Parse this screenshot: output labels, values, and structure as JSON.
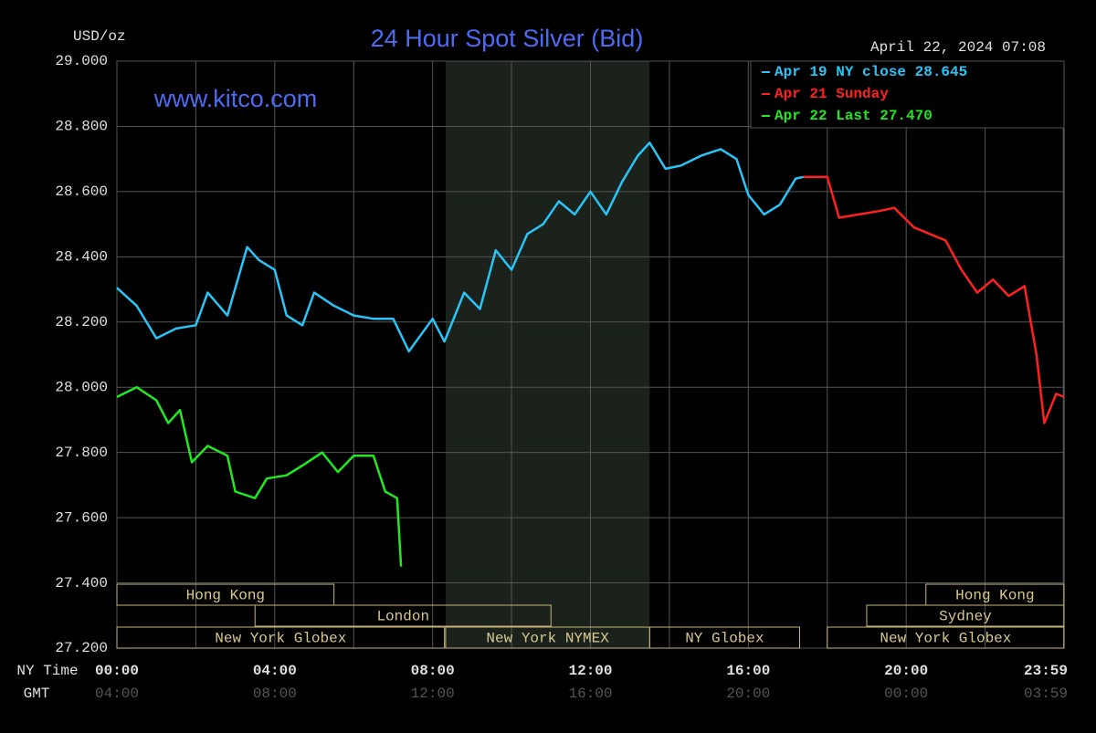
{
  "chart_data": {
    "type": "line",
    "title": "24 Hour Spot Silver (Bid)",
    "y_unit": "USD/oz",
    "timestamp": "April 22, 2024 07:08",
    "watermark": "www.kitco.com",
    "x_axis_labels": [
      "NY Time",
      "GMT"
    ],
    "xlim": [
      0,
      24
    ],
    "xticks": [
      {
        "value": 0,
        "label": "00:00"
      },
      {
        "value": 4,
        "label": "04:00"
      },
      {
        "value": 8,
        "label": "08:00"
      },
      {
        "value": 12,
        "label": "12:00"
      },
      {
        "value": 16,
        "label": "16:00"
      },
      {
        "value": 20,
        "label": "20:00"
      },
      {
        "value": 23.983,
        "label": "23:59"
      }
    ],
    "x_minor_grid": [
      2,
      6,
      10,
      14,
      18,
      22
    ],
    "gmt_labels": [
      "04:00",
      "08:00",
      "12:00",
      "16:00",
      "20:00",
      "00:00",
      "03:59"
    ],
    "ylim": [
      27.2,
      29.0
    ],
    "yticks": [
      {
        "value": 27.2,
        "label": "27.200"
      },
      {
        "value": 27.4,
        "label": "27.400"
      },
      {
        "value": 27.6,
        "label": "27.600"
      },
      {
        "value": 27.8,
        "label": "27.800"
      },
      {
        "value": 28.0,
        "label": "28.000"
      },
      {
        "value": 28.2,
        "label": "28.200"
      },
      {
        "value": 28.4,
        "label": "28.400"
      },
      {
        "value": 28.6,
        "label": "28.600"
      },
      {
        "value": 28.8,
        "label": "28.800"
      },
      {
        "value": 29.0,
        "label": "29.000"
      }
    ],
    "grid": true,
    "legend": "top-right",
    "shade": [
      8.33,
      13.5
    ],
    "series": [
      {
        "name": "Apr 19 NY close 28.645",
        "color": "#29c5f6",
        "x": [
          0,
          0.5,
          1.0,
          1.5,
          2.0,
          2.3,
          2.8,
          3.3,
          3.6,
          4.0,
          4.3,
          4.7,
          5.0,
          5.5,
          6.0,
          6.5,
          7.0,
          7.4,
          8.0,
          8.3,
          8.8,
          9.2,
          9.6,
          10.0,
          10.4,
          10.8,
          11.2,
          11.6,
          12.0,
          12.4,
          12.8,
          13.2,
          13.5,
          13.9,
          14.3,
          14.8,
          15.3,
          15.7,
          16.0,
          16.4,
          16.8,
          17.2,
          17.4
        ],
        "values": [
          28.305,
          28.25,
          28.15,
          28.18,
          28.19,
          28.29,
          28.22,
          28.43,
          28.39,
          28.36,
          28.22,
          28.19,
          28.29,
          28.25,
          28.22,
          28.21,
          28.21,
          28.11,
          28.21,
          28.14,
          28.29,
          28.24,
          28.42,
          28.36,
          28.47,
          28.5,
          28.57,
          28.53,
          28.6,
          28.53,
          28.63,
          28.71,
          28.75,
          28.67,
          28.68,
          28.71,
          28.73,
          28.7,
          28.59,
          28.53,
          28.56,
          28.64,
          28.645
        ]
      },
      {
        "name": "Apr 21 Sunday",
        "color": "#ff2020",
        "x": [
          17.4,
          18.0,
          18.3,
          18.8,
          19.3,
          19.7,
          20.2,
          20.6,
          21.0,
          21.4,
          21.8,
          22.2,
          22.6,
          23.0,
          23.3,
          23.5,
          23.8,
          24.0
        ],
        "values": [
          28.645,
          28.645,
          28.52,
          28.53,
          28.54,
          28.55,
          28.49,
          28.47,
          28.45,
          28.36,
          28.29,
          28.33,
          28.28,
          28.31,
          28.1,
          27.89,
          27.98,
          27.97
        ]
      },
      {
        "name": "Apr 22 Last 27.470",
        "color": "#22e822",
        "x": [
          0,
          0.5,
          1.0,
          1.3,
          1.6,
          1.9,
          2.3,
          2.8,
          3.0,
          3.5,
          3.8,
          4.3,
          4.7,
          5.2,
          5.6,
          6.0,
          6.5,
          6.8,
          7.1,
          7.2
        ],
        "values": [
          27.97,
          28.0,
          27.96,
          27.89,
          27.93,
          27.77,
          27.82,
          27.79,
          27.68,
          27.66,
          27.72,
          27.73,
          27.76,
          27.8,
          27.74,
          27.79,
          27.79,
          27.68,
          27.66,
          27.45
        ]
      }
    ],
    "sessions": [
      {
        "name": "Hong Kong",
        "start": 0,
        "end": 5.5,
        "row": 0
      },
      {
        "name": "Hong Kong",
        "start": 20.5,
        "end": 24,
        "row": 0
      },
      {
        "name": "London",
        "start": 3.5,
        "end": 11,
        "row": 1
      },
      {
        "name": "Sydney",
        "start": 19,
        "end": 24,
        "row": 1
      },
      {
        "name": "New York Globex",
        "start": 0,
        "end": 8.3,
        "row": 2
      },
      {
        "name": "New York NYMEX",
        "start": 8.33,
        "end": 13.5,
        "row": 2
      },
      {
        "name": "NY Globex",
        "start": 13.5,
        "end": 17.3,
        "row": 2
      },
      {
        "name": "New York Globex",
        "start": 18,
        "end": 24,
        "row": 2
      }
    ]
  }
}
